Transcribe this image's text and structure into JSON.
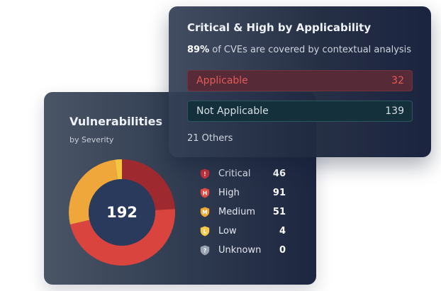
{
  "vulnerabilities": {
    "title": "Vulnerabilities",
    "subtitle": "by Severity",
    "total": "192",
    "severities": [
      {
        "label": "Critical",
        "count": "46",
        "value": 46,
        "icon": "critical-severity-icon",
        "color": "#9e2a2f",
        "icon_color": "#c8323a",
        "glyph": "!"
      },
      {
        "label": "High",
        "count": "91",
        "value": 91,
        "icon": "high-severity-icon",
        "color": "#d9443f",
        "icon_color": "#e04b45",
        "glyph": "H"
      },
      {
        "label": "Medium",
        "count": "51",
        "value": 51,
        "icon": "medium-severity-icon",
        "color": "#efa63a",
        "icon_color": "#f0a830",
        "glyph": "M"
      },
      {
        "label": "Low",
        "count": "4",
        "value": 4,
        "icon": "low-severity-icon",
        "color": "#f5c542",
        "icon_color": "#f7c948",
        "glyph": "L"
      },
      {
        "label": "Unknown",
        "count": "0",
        "value": 0,
        "icon": "unknown-severity-icon",
        "color": "#9aa3b0",
        "icon_color": "#9aa3b0",
        "glyph": "?"
      }
    ]
  },
  "applicability": {
    "title": "Critical & High by Applicability",
    "coverage_percent": "89%",
    "coverage_text": " of CVEs are covered by contextual analysis",
    "applicable": {
      "label": "Applicable",
      "value": "32",
      "color": "#e55a5a"
    },
    "not_applicable": {
      "label": "Not Applicable",
      "value": "139"
    },
    "others": "21 Others"
  }
}
